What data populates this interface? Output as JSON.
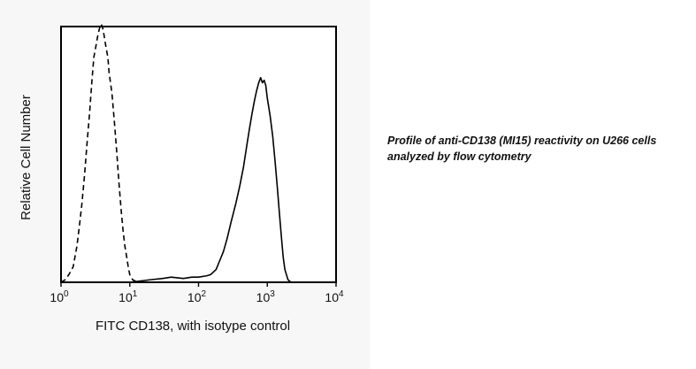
{
  "chart_data": {
    "type": "line",
    "xlabel": "FITC CD138, with isotype control",
    "ylabel": "Relative Cell Number",
    "x_scale": "log",
    "xlim": [
      1,
      10000
    ],
    "x_ticks": [
      {
        "base": "10",
        "exp": "0"
      },
      {
        "base": "10",
        "exp": "1"
      },
      {
        "base": "10",
        "exp": "2"
      },
      {
        "base": "10",
        "exp": "3"
      },
      {
        "base": "10",
        "exp": "4"
      }
    ],
    "ylim": [
      0,
      100
    ],
    "grid": false,
    "series": [
      {
        "style": "dashed",
        "points": [
          [
            1.0,
            0
          ],
          [
            1.15,
            1
          ],
          [
            1.3,
            3
          ],
          [
            1.5,
            6
          ],
          [
            1.7,
            14
          ],
          [
            1.85,
            22
          ],
          [
            2.0,
            30
          ],
          [
            2.2,
            42
          ],
          [
            2.4,
            55
          ],
          [
            2.6,
            66
          ],
          [
            2.8,
            78
          ],
          [
            3.0,
            88
          ],
          [
            3.2,
            92
          ],
          [
            3.4,
            96
          ],
          [
            3.6,
            99
          ],
          [
            3.8,
            101
          ],
          [
            4.0,
            100
          ],
          [
            4.2,
            97
          ],
          [
            4.5,
            92
          ],
          [
            4.8,
            88
          ],
          [
            5.0,
            82
          ],
          [
            5.5,
            74
          ],
          [
            6.0,
            62
          ],
          [
            6.5,
            50
          ],
          [
            7.0,
            38
          ],
          [
            7.5,
            28
          ],
          [
            8.0,
            20
          ],
          [
            8.5,
            14
          ],
          [
            9.0,
            10
          ],
          [
            9.5,
            6
          ],
          [
            10.0,
            3
          ],
          [
            11.0,
            1
          ],
          [
            13.0,
            0
          ],
          [
            20.0,
            0
          ],
          [
            100.0,
            0
          ],
          [
            10000.0,
            0
          ]
        ]
      },
      {
        "style": "solid",
        "points": [
          [
            1.0,
            0
          ],
          [
            5.0,
            0
          ],
          [
            10.0,
            0
          ],
          [
            20.0,
            1
          ],
          [
            30.0,
            1.5
          ],
          [
            40.0,
            2
          ],
          [
            60.0,
            1.5
          ],
          [
            80.0,
            2
          ],
          [
            100.0,
            2
          ],
          [
            130.0,
            2.5
          ],
          [
            150.0,
            3
          ],
          [
            180.0,
            5
          ],
          [
            200.0,
            8
          ],
          [
            230.0,
            12
          ],
          [
            260.0,
            17
          ],
          [
            300.0,
            24
          ],
          [
            350.0,
            31
          ],
          [
            400.0,
            38
          ],
          [
            450.0,
            45
          ],
          [
            500.0,
            53
          ],
          [
            550.0,
            60
          ],
          [
            600.0,
            66
          ],
          [
            650.0,
            71
          ],
          [
            700.0,
            75
          ],
          [
            750.0,
            78
          ],
          [
            800.0,
            80
          ],
          [
            850.0,
            78
          ],
          [
            900.0,
            79
          ],
          [
            950.0,
            77
          ],
          [
            1000.0,
            72
          ],
          [
            1100.0,
            65
          ],
          [
            1200.0,
            57
          ],
          [
            1300.0,
            47
          ],
          [
            1400.0,
            37
          ],
          [
            1500.0,
            27
          ],
          [
            1600.0,
            18
          ],
          [
            1700.0,
            10
          ],
          [
            1800.0,
            5
          ],
          [
            2000.0,
            1
          ],
          [
            2200.0,
            0
          ],
          [
            10000.0,
            0
          ]
        ]
      }
    ]
  },
  "caption": {
    "line1": "Profile of anti-CD138 (MI15) reactivity on U266 cells",
    "line2": "analyzed by flow cytometry"
  }
}
